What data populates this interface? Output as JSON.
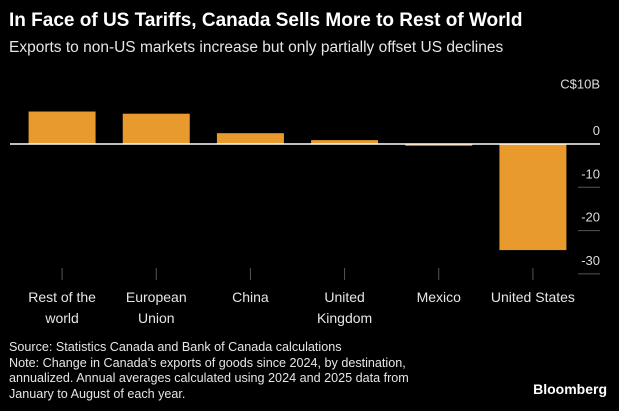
{
  "title": "In Face of US Tariffs, Canada Sells More to Rest of World",
  "subtitle": "Exports to non-US markets increase but only partially offset US declines",
  "chart_data": {
    "type": "bar",
    "orientation": "vertical",
    "unit_label": "C$10B",
    "categories": [
      [
        "Rest of the",
        "world"
      ],
      [
        "European",
        "Union"
      ],
      [
        "China"
      ],
      [
        "United",
        "Kingdom"
      ],
      [
        "Mexico"
      ],
      [
        "United States"
      ]
    ],
    "values": [
      7.5,
      7.0,
      2.5,
      0.9,
      -0.4,
      -24.5
    ],
    "y_ticks": [
      {
        "value": 10,
        "label": "C$10B"
      },
      {
        "value": 0,
        "label": "0"
      },
      {
        "value": -10,
        "label": "-10"
      },
      {
        "value": -20,
        "label": "-20"
      },
      {
        "value": -30,
        "label": "-30"
      }
    ],
    "ylim": [
      -30,
      10
    ],
    "bar_color": "#e89a2c",
    "axis_color": "#ffffff",
    "tick_color": "#555555",
    "ylabel": "",
    "xlabel": ""
  },
  "footer": {
    "source": "Source: Statistics Canada and Bank of Canada calculations",
    "note1": "Note: Change in Canada’s exports of goods since 2024, by destination,",
    "note2": "annualized. Annual averages calculated using 2024 and 2025 data from",
    "note3": "January to August of each year."
  },
  "brand": "Bloomberg"
}
